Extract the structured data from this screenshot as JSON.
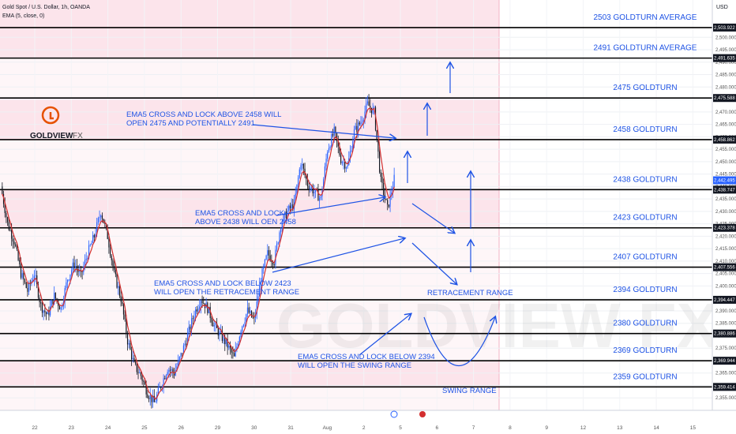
{
  "header": {
    "symbol_line": "Gold Spot / U.S. Dollar, 1h, OANDA",
    "indicator_line": "EMA (5, close, 0)",
    "currency": "USD"
  },
  "logo": {
    "brand": "GOLDVIEW",
    "suffix": "FX",
    "watermark": "GOLDVIEW FX"
  },
  "colors": {
    "up": "#2962ff",
    "down": "#131722",
    "ema": "#d32f2f",
    "zone": "#fce4ec",
    "accent": "#1e53e5",
    "level_line": "#000000"
  },
  "chart_data": {
    "type": "candlestick",
    "instrument": "XAUUSD",
    "timeframe": "1h",
    "ylim": [
      2350,
      2515
    ],
    "x_tick_labels": [
      "22",
      "23",
      "24",
      "25",
      "26",
      "29",
      "30",
      "31",
      "Aug",
      "2",
      "5",
      "6",
      "7",
      "8",
      "9",
      "12",
      "13",
      "14",
      "15"
    ],
    "y_tick_labels": [
      "2,500.000",
      "2,495.000",
      "2,490.000",
      "2,485.000",
      "2,480.000",
      "2,475.000",
      "2,470.000",
      "2,465.000",
      "2,460.000",
      "2,455.000",
      "2,450.000",
      "2,445.000",
      "2,440.000",
      "2,435.000",
      "2,430.000",
      "2,425.000",
      "2,420.000",
      "2,415.000",
      "2,410.000",
      "2,405.000",
      "2,400.000",
      "2,395.000",
      "2,390.000",
      "2,385.000",
      "2,380.000",
      "2,375.000",
      "2,370.000",
      "2,365.000",
      "2,360.000",
      "2,355.000"
    ],
    "levels": [
      {
        "price": 2503.922,
        "label": "2503 GOLDTURN AVERAGE",
        "badge": "2,503.922"
      },
      {
        "price": 2491.635,
        "label": "2491 GOLDTURN AVERAGE",
        "badge": "2,491.635"
      },
      {
        "price": 2475.588,
        "label": "2475 GOLDTURN",
        "badge": "2,475.588"
      },
      {
        "price": 2458.862,
        "label": "2458 GOLDTURN",
        "badge": "2,458.862"
      },
      {
        "price": 2438.747,
        "label": "2438 GOLDTURN",
        "badge": "2,438.747"
      },
      {
        "price": 2423.378,
        "label": "2423 GOLDTURN",
        "badge": "2,423.378"
      },
      {
        "price": 2407.556,
        "label": "2407 GOLDTURN",
        "badge": "2,407.556"
      },
      {
        "price": 2394.447,
        "label": "2394 GOLDTURN",
        "badge": "2,394.447"
      },
      {
        "price": 2380.886,
        "label": "2380 GOLDTURN",
        "badge": "2,380.886"
      },
      {
        "price": 2369.944,
        "label": "2369 GOLDTURN",
        "badge": "2,369.944"
      },
      {
        "price": 2359.414,
        "label": "2359 GOLDTURN",
        "badge": "2,359.414"
      }
    ],
    "current_price_badge": "2,442.495",
    "current_price": 2442.495,
    "zone_bands": [
      [
        2491.635,
        2515
      ],
      [
        2458.862,
        2475.588
      ],
      [
        2423.378,
        2438.747
      ],
      [
        2359.414,
        2369.944
      ]
    ],
    "annotations": [
      {
        "id": "ann1",
        "lines": [
          "EMA5 CROSS AND LOCK ABOVE 2458 WILL",
          "OPEN 2475 AND POTENTIALLY 2491"
        ]
      },
      {
        "id": "ann2",
        "lines": [
          "EMA5 CROSS AND LOCK",
          "ABOVE 2438 WILL OEN 2458"
        ]
      },
      {
        "id": "ann3",
        "lines": [
          "EMA5 CROSS AND LOCK BELOW 2423",
          "WILL OPEN THE RETRACEMENT RANGE"
        ]
      },
      {
        "id": "ann4",
        "lines": [
          "EMA5 CROSS AND LOCK BELOW 2394",
          "WILL OPEN THE SWING RANGE"
        ]
      },
      {
        "id": "retr",
        "lines": [
          "RETRACEMENT RANGE"
        ]
      },
      {
        "id": "swing",
        "lines": [
          "SWING RANGE"
        ]
      }
    ],
    "price_path": [
      2440,
      2425,
      2418,
      2405,
      2398,
      2405,
      2392,
      2388,
      2396,
      2391,
      2403,
      2409,
      2404,
      2413,
      2420,
      2430,
      2420,
      2405,
      2395,
      2378,
      2368,
      2364,
      2357,
      2353,
      2360,
      2367,
      2365,
      2372,
      2380,
      2389,
      2395,
      2391,
      2384,
      2380,
      2376,
      2371,
      2383,
      2390,
      2386,
      2403,
      2413,
      2410,
      2425,
      2430,
      2433,
      2450,
      2441,
      2438,
      2435,
      2455,
      2462,
      2451,
      2448,
      2462,
      2466,
      2473,
      2470,
      2442,
      2431,
      2443
    ]
  }
}
